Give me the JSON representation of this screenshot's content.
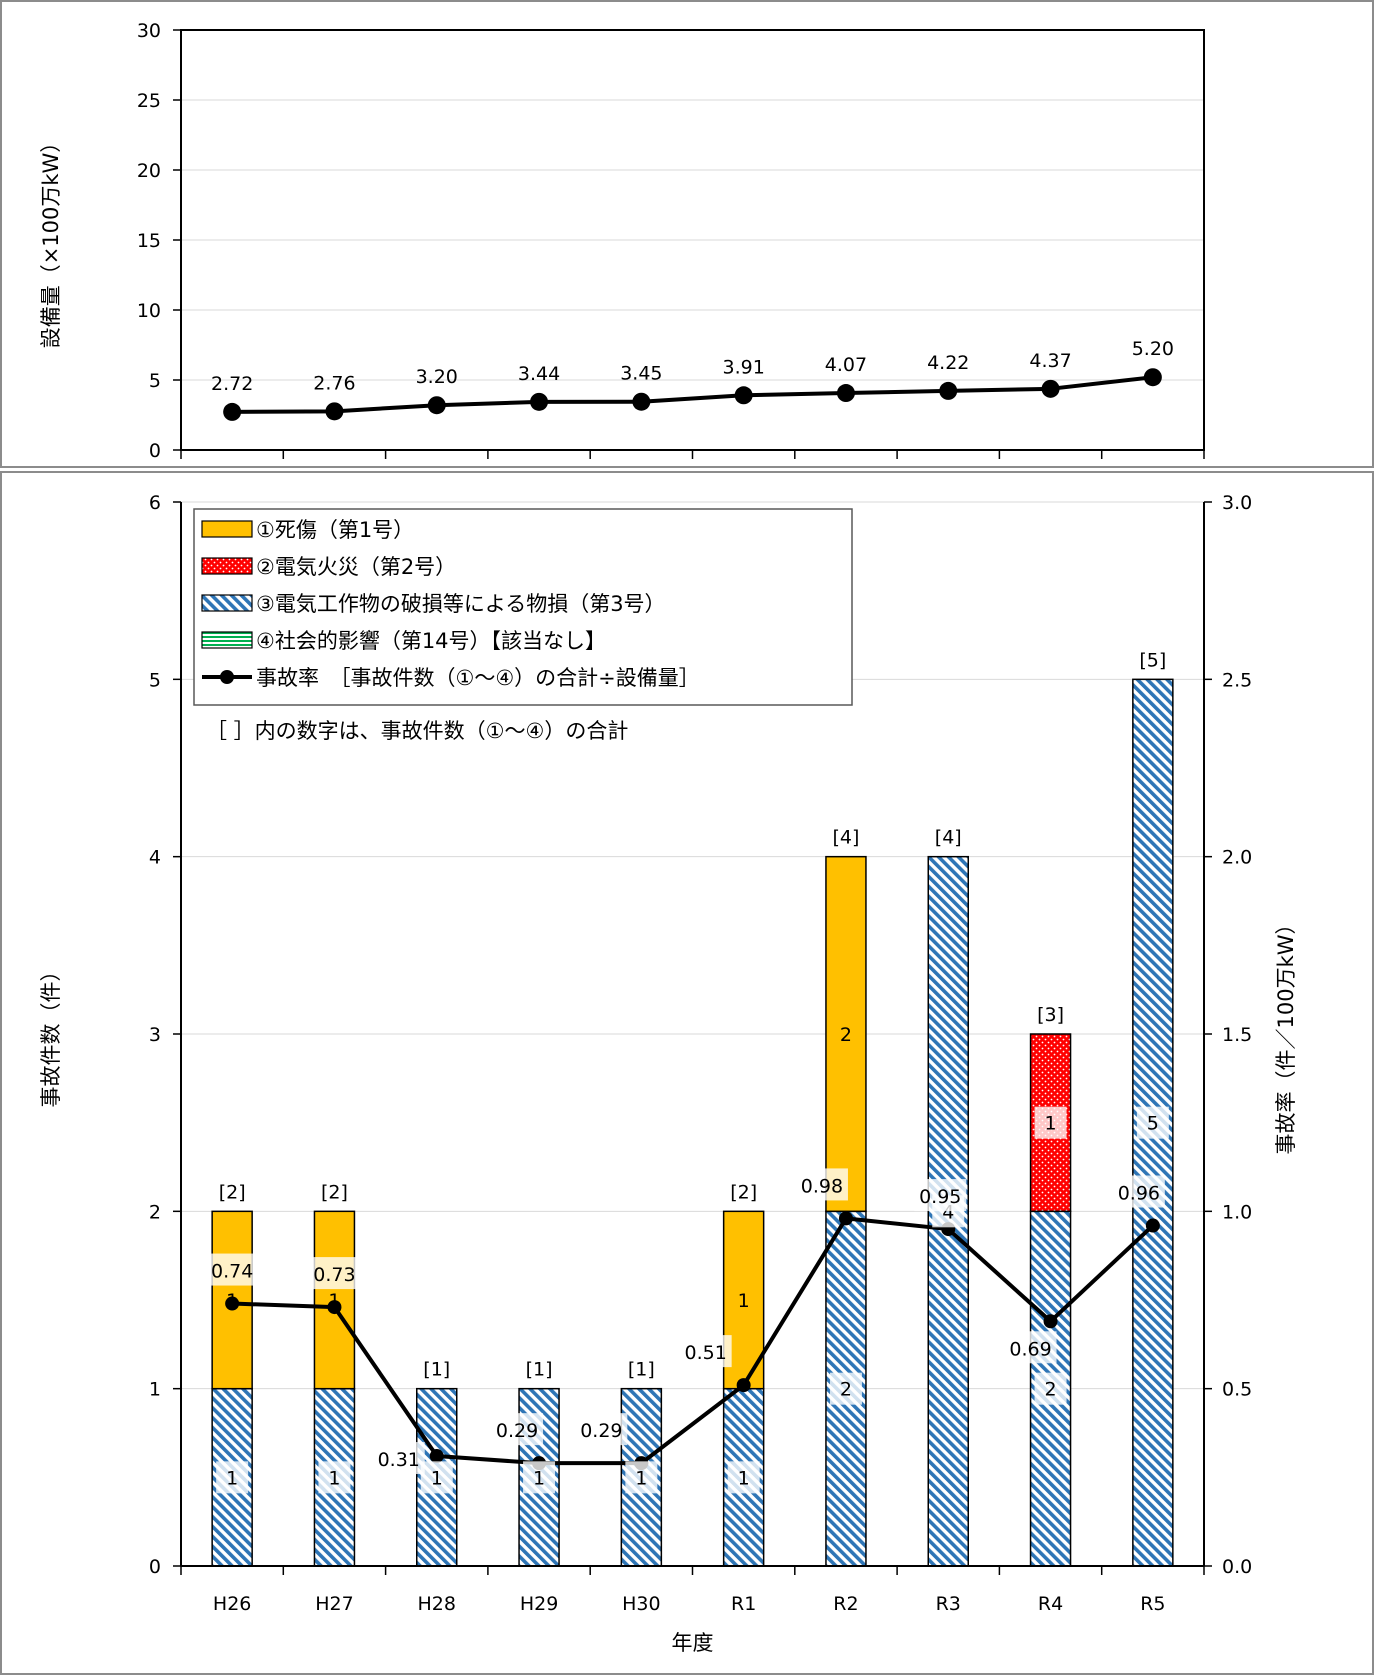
{
  "chart_data": [
    {
      "type": "line",
      "ylabel": "設備量（×100万kW）",
      "ylim": [
        0,
        30
      ],
      "yticks": [
        0,
        5,
        10,
        15,
        20,
        25,
        30
      ],
      "categories": [
        "H26",
        "H27",
        "H28",
        "H29",
        "H30",
        "R1",
        "R2",
        "R3",
        "R4",
        "R5"
      ],
      "series": [
        {
          "values": [
            2.72,
            2.76,
            3.2,
            3.44,
            3.45,
            3.91,
            4.07,
            4.22,
            4.37,
            5.2
          ]
        }
      ],
      "value_labels": [
        "2.72",
        "2.76",
        "3.20",
        "3.44",
        "3.45",
        "3.91",
        "4.07",
        "4.22",
        "4.37",
        "5.20"
      ],
      "grid": true
    },
    {
      "type": "bar",
      "stacked": true,
      "xlabel": "年度",
      "ylabel": "事故件数（件）",
      "y2label": "事故率（件／100万kW）",
      "ylim": [
        0,
        6
      ],
      "y2lim": [
        0,
        3
      ],
      "yticks": [
        0,
        1,
        2,
        3,
        4,
        5,
        6
      ],
      "y2ticks": [
        "0.0",
        "0.5",
        "1.0",
        "1.5",
        "2.0",
        "2.5",
        "3.0"
      ],
      "categories": [
        "H26",
        "H27",
        "H28",
        "H29",
        "H30",
        "R1",
        "R2",
        "R3",
        "R4",
        "R5"
      ],
      "series": [
        {
          "name": "③電気工作物の破損等による物損（第3号）",
          "pattern": "blue-diagonal-hatch",
          "color": "#2e75b6",
          "values": [
            1,
            1,
            1,
            1,
            1,
            1,
            2,
            4,
            2,
            5
          ]
        },
        {
          "name": "①死傷（第1号）",
          "pattern": "solid",
          "color": "#ffc000",
          "values": [
            1,
            1,
            0,
            0,
            0,
            1,
            2,
            0,
            0,
            0
          ]
        },
        {
          "name": "②電気火災（第2号）",
          "pattern": "red-dotted",
          "color": "#ff0000",
          "values": [
            0,
            0,
            0,
            0,
            0,
            0,
            0,
            0,
            1,
            0
          ]
        },
        {
          "name": "④社会的影響（第14号）【該当なし】",
          "pattern": "green-horizontal-lines",
          "color": "#00b050",
          "values": [
            0,
            0,
            0,
            0,
            0,
            0,
            0,
            0,
            0,
            0
          ]
        }
      ],
      "totals": [
        "[2]",
        "[2]",
        "[1]",
        "[1]",
        "[1]",
        "[2]",
        "[4]",
        "[4]",
        "[3]",
        "[5]"
      ],
      "rate_series": {
        "name": "事故率　［事故件数（①～④）の合計÷設備量］",
        "axis": "secondary",
        "values": [
          0.74,
          0.73,
          0.31,
          0.29,
          0.29,
          0.51,
          0.98,
          0.95,
          0.69,
          0.96
        ],
        "labels": [
          "0.74",
          "0.73",
          "0.31",
          "0.29",
          "0.29",
          "0.51",
          "0.98",
          "0.95",
          "0.69",
          "0.96"
        ]
      },
      "legend_order": [
        "①死傷（第1号）",
        "②電気火災（第2号）",
        "③電気工作物の破損等による物損（第3号）",
        "④社会的影響（第14号）【該当なし】",
        "事故率　［事故件数（①～④）の合計÷設備量］"
      ],
      "note": "［ ］内の数字は、事故件数（①～④）の合計",
      "legend_position": "top-left",
      "grid": true
    }
  ]
}
